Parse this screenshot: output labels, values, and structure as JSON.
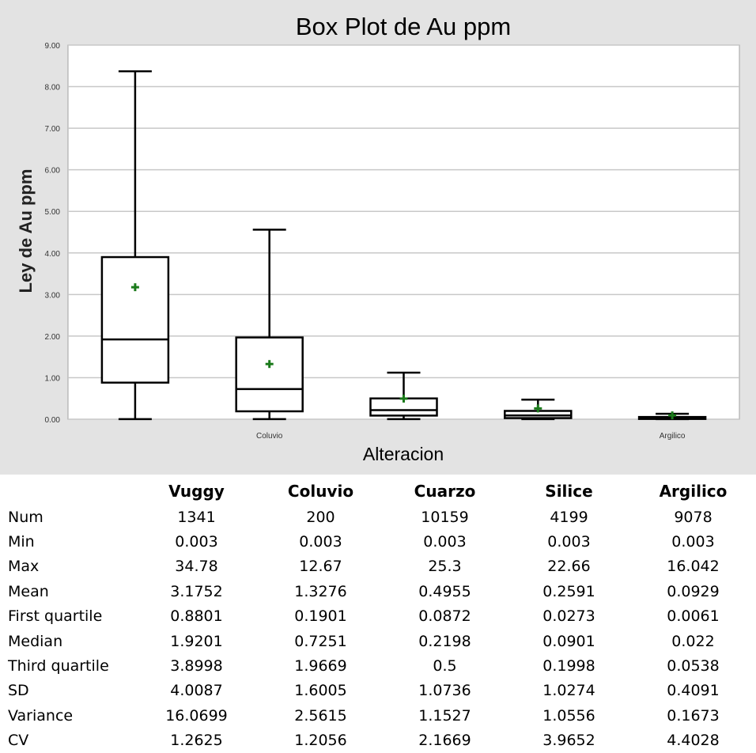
{
  "chart_data": {
    "type": "box",
    "title": "Box Plot de Au ppm",
    "xlabel": "Alteracion",
    "ylabel": "Ley de Au ppm",
    "ylim": [
      0,
      9
    ],
    "yticks": [
      "0.00",
      "1.00",
      "2.00",
      "3.00",
      "4.00",
      "5.00",
      "6.00",
      "7.00",
      "8.00",
      "9.00"
    ],
    "categories": [
      "Vuggy",
      "Coluvio",
      "Cuarzo",
      "Silice",
      "Argilico"
    ],
    "x_tick_labels": [
      "",
      "Coluvio",
      "",
      "",
      "Argilico"
    ],
    "grid": true,
    "boxes": [
      {
        "name": "Vuggy",
        "whisker_low": 0.003,
        "q1": 0.8801,
        "median": 1.9201,
        "q3": 3.8998,
        "whisker_high": 8.37,
        "mean": 3.1752
      },
      {
        "name": "Coluvio",
        "whisker_low": 0.003,
        "q1": 0.1901,
        "median": 0.7251,
        "q3": 1.9669,
        "whisker_high": 4.56,
        "mean": 1.3276
      },
      {
        "name": "Cuarzo",
        "whisker_low": 0.003,
        "q1": 0.0872,
        "median": 0.2198,
        "q3": 0.5,
        "whisker_high": 1.12,
        "mean": 0.4955
      },
      {
        "name": "Silice",
        "whisker_low": 0.003,
        "q1": 0.0273,
        "median": 0.0901,
        "q3": 0.1998,
        "whisker_high": 0.47,
        "mean": 0.2591
      },
      {
        "name": "Argilico",
        "whisker_low": 0.003,
        "q1": 0.0061,
        "median": 0.022,
        "q3": 0.0538,
        "whisker_high": 0.13,
        "mean": 0.0929
      }
    ],
    "colors": {
      "box": "#000000",
      "mean_marker": "#1b7a1b",
      "grid": "#c8c8c8",
      "panel": "#e3e3e3",
      "plot_bg": "#ffffff"
    }
  },
  "stats_table": {
    "columns": [
      "Vuggy",
      "Coluvio",
      "Cuarzo",
      "Silice",
      "Argilico"
    ],
    "rows": [
      {
        "label": "Num",
        "values": [
          "1341",
          "200",
          "10159",
          "4199",
          "9078"
        ]
      },
      {
        "label": "Min",
        "values": [
          "0.003",
          "0.003",
          "0.003",
          "0.003",
          "0.003"
        ]
      },
      {
        "label": "Max",
        "values": [
          "34.78",
          "12.67",
          "25.3",
          "22.66",
          "16.042"
        ]
      },
      {
        "label": "Mean",
        "values": [
          "3.1752",
          "1.3276",
          "0.4955",
          "0.2591",
          "0.0929"
        ]
      },
      {
        "label": "First quartile",
        "values": [
          "0.8801",
          "0.1901",
          "0.0872",
          "0.0273",
          "0.0061"
        ]
      },
      {
        "label": "Median",
        "values": [
          "1.9201",
          "0.7251",
          "0.2198",
          "0.0901",
          "0.022"
        ]
      },
      {
        "label": "Third quartile",
        "values": [
          "3.8998",
          "1.9669",
          "0.5",
          "0.1998",
          "0.0538"
        ]
      },
      {
        "label": "SD",
        "values": [
          "4.0087",
          "1.6005",
          "1.0736",
          "1.0274",
          "0.4091"
        ]
      },
      {
        "label": "Variance",
        "values": [
          "16.0699",
          "2.5615",
          "1.1527",
          "1.0556",
          "0.1673"
        ]
      },
      {
        "label": "CV",
        "values": [
          "1.2625",
          "1.2056",
          "2.1669",
          "3.9652",
          "4.4028"
        ]
      }
    ]
  }
}
